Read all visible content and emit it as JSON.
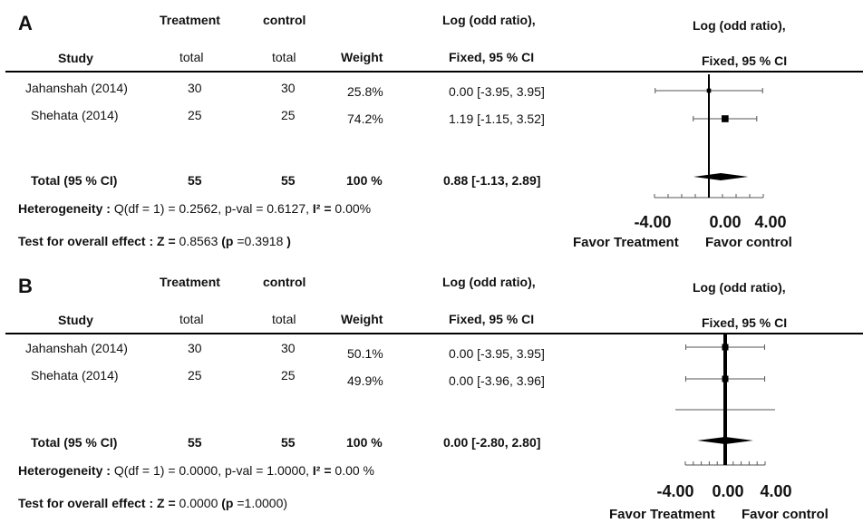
{
  "panels": [
    {
      "label": "A",
      "header": {
        "treatment": "Treatment",
        "control": "control",
        "effect_line1": "Log (odd ratio),",
        "effect_line2": "Fixed, 95 % CI",
        "plot_line1": "Log (odd ratio),",
        "plot_line2": "Fixed, 95 % CI",
        "study": "Study",
        "total_t": "total",
        "total_c": "total",
        "weight": "Weight"
      },
      "rows": [
        {
          "study": "Jahanshah (2014)",
          "total_t": "30",
          "total_c": "30",
          "weight": "25.8%",
          "ci_text": "0.00 [-3.95, 3.95]"
        },
        {
          "study": "Shehata (2014)",
          "total_t": "25",
          "total_c": "25",
          "weight": "74.2%",
          "ci_text": "1.19 [-1.15, 3.52]"
        }
      ],
      "total": {
        "label": "Total (95 % CI)",
        "total_t": "55",
        "total_c": "55",
        "weight": "100 %",
        "ci_text": "0.88  [-1.13, 2.89]"
      },
      "heterogeneity": {
        "label": "Heterogeneity :",
        "text": "Q(df = 1) = 0.2562, p-val = 0.6127,",
        "i2_label": "I² =",
        "i2_value": "0.00%"
      },
      "overall": {
        "label": "Test for overall  effect :",
        "z_label": "Z =",
        "z_value": "0.8563",
        "p_open": "(p",
        "p_value": "=0.3918",
        "p_close": ")"
      },
      "axis": {
        "ticks": [
          "-4.00",
          "0.00",
          "4.00"
        ],
        "favor_left": "Favor Treatment",
        "favor_right": "Favor control"
      }
    },
    {
      "label": "B",
      "header": {
        "treatment": "Treatment",
        "control": "control",
        "effect_line1": "Log (odd ratio),",
        "effect_line2": "Fixed, 95 % CI",
        "plot_line1": "Log (odd ratio),",
        "plot_line2": "Fixed, 95 % CI",
        "study": "Study",
        "total_t": "total",
        "total_c": "total",
        "weight": "Weight"
      },
      "rows": [
        {
          "study": "Jahanshah (2014)",
          "total_t": "30",
          "total_c": "30",
          "weight": "50.1%",
          "ci_text": "0.00 [-3.95, 3.95]"
        },
        {
          "study": "Shehata (2014)",
          "total_t": "25",
          "total_c": "25",
          "weight": "49.9%",
          "ci_text": "0.00 [-3.96, 3.96]"
        }
      ],
      "total": {
        "label": "Total (95 % CI)",
        "total_t": "55",
        "total_c": "55",
        "weight": "100 %",
        "ci_text": "0.00  [-2.80, 2.80]"
      },
      "heterogeneity": {
        "label": "Heterogeneity :",
        "text": "Q(df = 1) = 0.0000, p-val = 1.0000,",
        "i2_label": "I² =",
        "i2_value": "0.00 %"
      },
      "overall": {
        "label": "Test for overall  effect :",
        "z_label": "Z =",
        "z_value": "0.0000",
        "p_open": "(p",
        "p_value": "=1.0000)",
        "p_close": ""
      },
      "axis": {
        "ticks": [
          "-4.00",
          "0.00",
          "4.00"
        ],
        "favor_left": "Favor Treatment",
        "favor_right": "Favor control"
      }
    }
  ],
  "chart_data": [
    {
      "type": "forest",
      "xlim": [
        -4,
        4
      ],
      "ticks": [
        -4.0,
        0.0,
        4.0
      ],
      "studies": [
        {
          "name": "Jahanshah (2014)",
          "estimate": 0.0,
          "lower": -3.95,
          "upper": 3.95,
          "weight": 25.8
        },
        {
          "name": "Shehata (2014)",
          "estimate": 1.19,
          "lower": -1.15,
          "upper": 3.52,
          "weight": 74.2
        }
      ],
      "pooled": {
        "estimate": 0.88,
        "lower": -1.13,
        "upper": 2.89
      }
    },
    {
      "type": "forest",
      "xlim": [
        -4,
        4
      ],
      "ticks": [
        -4.0,
        0.0,
        4.0
      ],
      "studies": [
        {
          "name": "Jahanshah (2014)",
          "estimate": 0.0,
          "lower": -3.95,
          "upper": 3.95,
          "weight": 50.1
        },
        {
          "name": "Shehata (2014)",
          "estimate": 0.0,
          "lower": -3.96,
          "upper": 3.96,
          "weight": 49.9
        }
      ],
      "extra_interval": {
        "lower": -5.0,
        "upper": 5.0
      },
      "pooled": {
        "estimate": 0.0,
        "lower": -2.8,
        "upper": 2.8
      }
    }
  ]
}
